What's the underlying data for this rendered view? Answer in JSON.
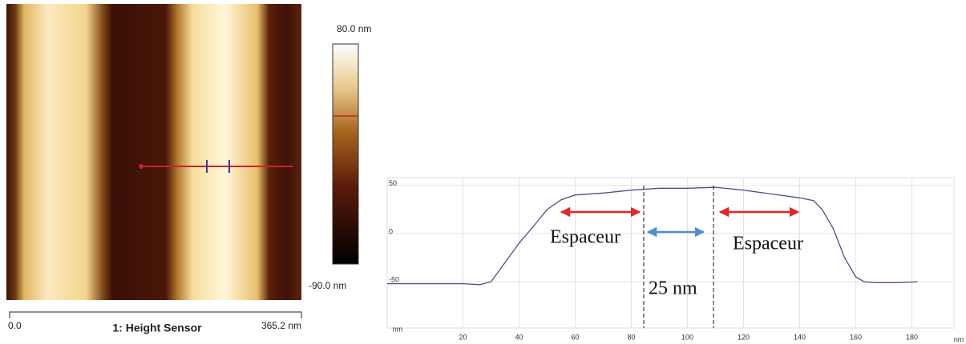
{
  "afm_image": {
    "colorbar_max_label": "80.0 nm",
    "colorbar_min_label": "-90.0 nm",
    "scale_start_label": "0.0",
    "channel_label": "1: Height Sensor",
    "scale_end_label": "365.2 nm"
  },
  "chart_data": {
    "type": "line",
    "color": "#4a4f8c",
    "x": [
      -7,
      0,
      10,
      20,
      26,
      30,
      35,
      40,
      45,
      50,
      55,
      60,
      70,
      80,
      90,
      100,
      110,
      120,
      130,
      140,
      145,
      148,
      152,
      156,
      160,
      163,
      167,
      175,
      182
    ],
    "values": [
      -52,
      -52,
      -52,
      -52,
      -53,
      -50,
      -30,
      -10,
      7,
      25,
      35,
      40,
      42,
      45,
      47,
      47,
      48,
      45,
      41,
      37,
      34,
      25,
      5,
      -25,
      -45,
      -50,
      -51,
      -51,
      -50
    ],
    "xlim": [
      -7,
      195
    ],
    "ylim": [
      -98,
      58
    ],
    "xticks": [
      20,
      40,
      60,
      80,
      100,
      120,
      140,
      160,
      180
    ],
    "yticks": [
      -50,
      0,
      50
    ],
    "grid": true,
    "x_label": "nm",
    "y_label": "nm",
    "annotations": [
      "Espaceur",
      "Espaceur",
      "25 nm"
    ]
  }
}
